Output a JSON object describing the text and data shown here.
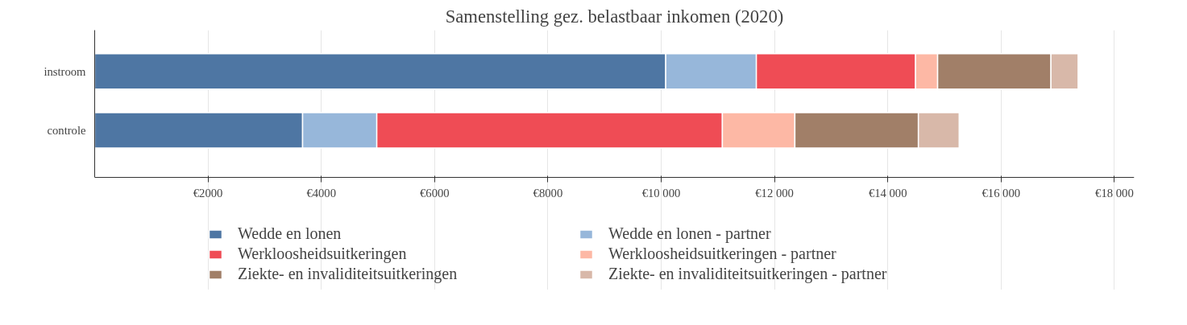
{
  "chart_data": {
    "type": "bar",
    "orientation": "horizontal",
    "stacked": true,
    "title": "Samenstelling gez. belastbaar inkomen (2020)",
    "categories": [
      "instroom",
      "controle"
    ],
    "series": [
      {
        "name": "Wedde en lonen",
        "color": "#4e76a3",
        "values": [
          10080,
          3670
        ]
      },
      {
        "name": "Wedde en lonen - partner",
        "color": "#97b7da",
        "values": [
          1600,
          1310
        ]
      },
      {
        "name": "Werkloosheidsuitkeringen",
        "color": "#ef4c55",
        "values": [
          2810,
          6100
        ]
      },
      {
        "name": "Werkloosheidsuitkeringen - partner",
        "color": "#fdb8a5",
        "values": [
          390,
          1280
        ]
      },
      {
        "name": "Ziekte- en invaliditeitsuitkeringen",
        "color": "#a17f68",
        "values": [
          2000,
          2180
        ]
      },
      {
        "name": "Ziekte- en invaliditeitsuitkeringen - partner",
        "color": "#d8b8a9",
        "values": [
          480,
          720
        ]
      }
    ],
    "xlim": [
      0,
      18350
    ],
    "xticks": [
      {
        "value": 2000,
        "label": "€2000"
      },
      {
        "value": 4000,
        "label": "€4000"
      },
      {
        "value": 6000,
        "label": "€6000"
      },
      {
        "value": 8000,
        "label": "€8000"
      },
      {
        "value": 10000,
        "label": "€10 000"
      },
      {
        "value": 12000,
        "label": "€12 000"
      },
      {
        "value": 14000,
        "label": "€14 000"
      },
      {
        "value": 16000,
        "label": "€16 000"
      },
      {
        "value": 18000,
        "label": "€18 000"
      }
    ],
    "grid": "x",
    "legend": "bottom"
  }
}
